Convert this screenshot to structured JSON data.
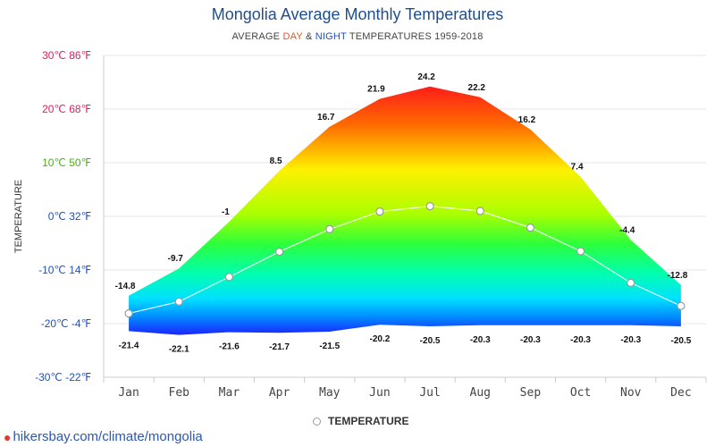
{
  "chart_data": {
    "type": "area",
    "title": "Mongolia Average Monthly Temperatures",
    "subtitle": {
      "prefix": "AVERAGE ",
      "day": "DAY",
      "amp": " & ",
      "night": "NIGHT",
      "suffix": " TEMPERATURES 1959-2018"
    },
    "ylabel": "TEMPERATURE",
    "ylim": [
      -30,
      30
    ],
    "yticks": [
      {
        "value": 30,
        "label": "30℃ 86℉",
        "color": "#d6245e"
      },
      {
        "value": 20,
        "label": "20℃ 68℉",
        "color": "#d6245e"
      },
      {
        "value": 10,
        "label": "10℃ 50℉",
        "color": "#4cae1c"
      },
      {
        "value": 0,
        "label": "0℃ 32℉",
        "color": "#1f4fc0"
      },
      {
        "value": -10,
        "label": "-10℃ 14℉",
        "color": "#1f4fc0"
      },
      {
        "value": -20,
        "label": "-20℃ -4℉",
        "color": "#1f4fc0"
      },
      {
        "value": -30,
        "label": "-30℃ -22℉",
        "color": "#1f4fc0"
      }
    ],
    "categories": [
      "Jan",
      "Feb",
      "Mar",
      "Apr",
      "May",
      "Jun",
      "Jul",
      "Aug",
      "Sep",
      "Oct",
      "Nov",
      "Dec"
    ],
    "series": [
      {
        "name": "",
        "values": [
          -14.8,
          -9.7,
          -1,
          8.5,
          16.7,
          21.9,
          24.2,
          22.2,
          16.2,
          7.4,
          -4.4,
          -12.8
        ]
      },
      {
        "name": "",
        "values": [
          -21.4,
          -22.1,
          -21.6,
          -21.7,
          -21.5,
          -20.2,
          -20.5,
          -20.3,
          -20.3,
          -20.3,
          -20.3,
          -20.5
        ]
      },
      {
        "name": "TEMPERATURE",
        "values": [
          -18.1,
          -15.9,
          -11.3,
          -6.6,
          -2.4,
          0.9,
          1.9,
          1.0,
          -2.1,
          -6.5,
          -12.4,
          -16.7
        ]
      }
    ],
    "grid": true,
    "legend": "bottom-center"
  },
  "footer": {
    "pin_icon": "map-pin-icon",
    "link_text": "hikersbay.com/climate/mongolia"
  }
}
